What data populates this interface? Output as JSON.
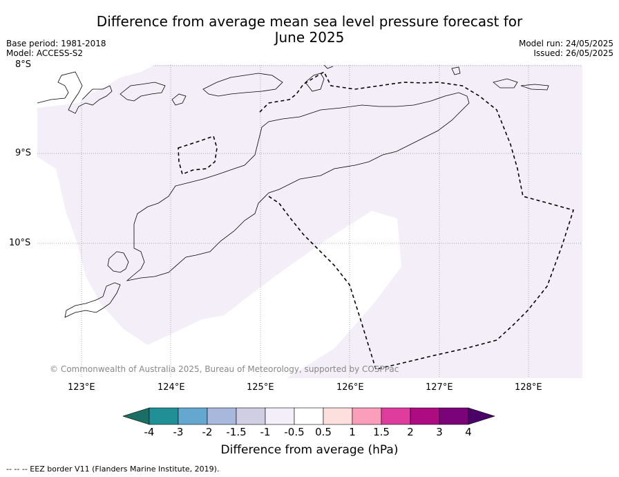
{
  "title_line1": "Difference from average mean sea level pressure forecast for",
  "title_line2": "June 2025",
  "base_period": "Base period: 1981-2018",
  "model": "Model: ACCESS-S2",
  "model_run": "Model run: 24/05/2025",
  "issued": "Issued: 26/05/2025",
  "lat_labels": [
    "8°S",
    "9°S",
    "10°S"
  ],
  "lon_labels": [
    "123°E",
    "124°E",
    "125°E",
    "126°E",
    "127°E",
    "128°E"
  ],
  "copyright": "© Commonwealth of Australia 2025, Bureau of Meteorology, supported by COSPPac",
  "colorbar": {
    "label": "Difference from average (hPa)",
    "ticks": [
      "-4",
      "-3",
      "-2",
      "-1.5",
      "-1",
      "-0.5",
      "0.5",
      "1",
      "1.5",
      "2",
      "3",
      "4"
    ],
    "colors": [
      "#1a6e63",
      "#208f96",
      "#65a8cf",
      "#a7b8dc",
      "#d0cee3",
      "#f3eef7",
      "#ffffff",
      "#fde0de",
      "#f99fbb",
      "#df3d9d",
      "#ac0b82",
      "#7b037a",
      "#4a0168"
    ]
  },
  "map_shading": {
    "anomaly_fill": "#f3eef7"
  },
  "footer": "--  --  -- EEZ border V11 (Flanders Marine Institute, 2019)."
}
